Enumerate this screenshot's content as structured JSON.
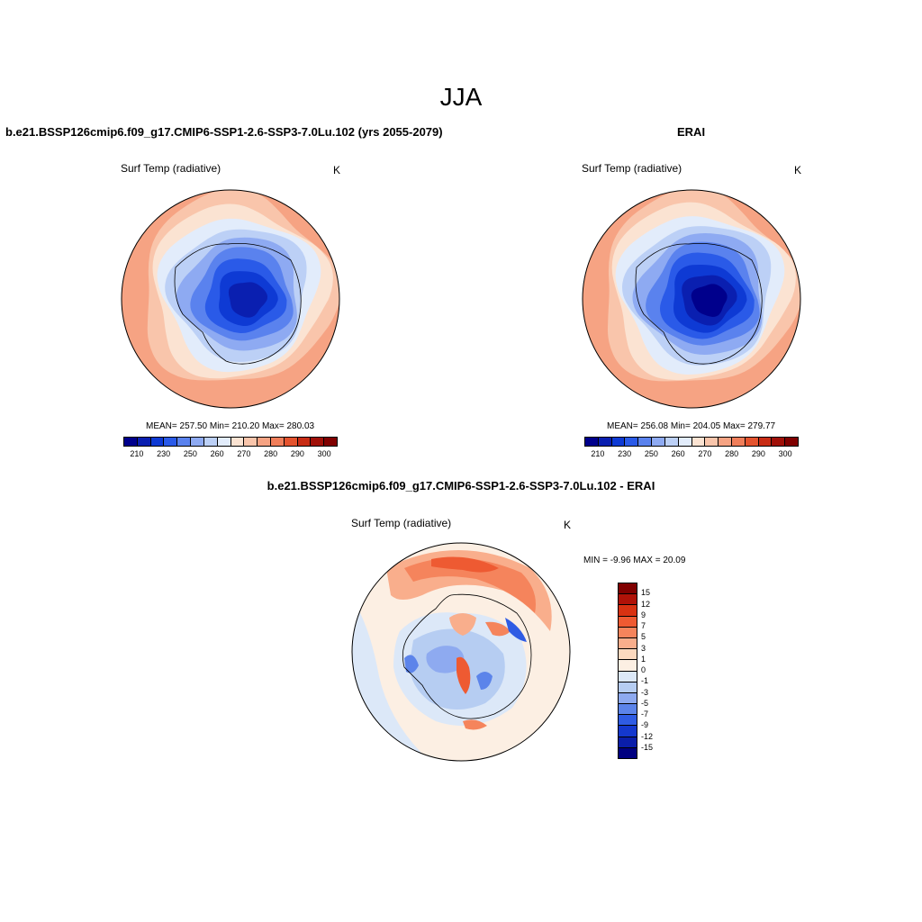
{
  "figure": {
    "title": "JJA"
  },
  "panels": {
    "model": {
      "header": "b.e21.BSSP126cmip6.f09_g17.CMIP6-SSP1-2.6-SSP3-7.0Lu.102 (yrs 2055-2079)",
      "variable": "Surf Temp (radiative)",
      "units": "K",
      "stats": "MEAN= 257.50  Min= 210.20  Max= 280.03"
    },
    "obs": {
      "header": "ERAI",
      "variable": "Surf Temp (radiative)",
      "units": "K",
      "stats": "MEAN= 256.08  Min= 204.05  Max= 279.77"
    },
    "diff": {
      "header": "b.e21.BSSP126cmip6.f09_g17.CMIP6-SSP1-2.6-SSP3-7.0Lu.102 - ERAI",
      "variable": "Surf Temp (radiative)",
      "units": "K",
      "stats": "MIN =  -9.96 MAX =  20.09"
    }
  },
  "colorbars": {
    "absolute": {
      "colors": [
        "#00008c",
        "#0a1fb0",
        "#0e3ad4",
        "#2a5ae8",
        "#5a82ee",
        "#8eaaf2",
        "#bcd0f6",
        "#e2ecfb",
        "#fbe3d2",
        "#f9c5ab",
        "#f6a383",
        "#f07e5a",
        "#e4532e",
        "#c82c14",
        "#a01008",
        "#800000"
      ],
      "tick_labels": [
        "210",
        "230",
        "250",
        "260",
        "270",
        "280",
        "290",
        "300"
      ]
    },
    "difference": {
      "colors": [
        "#800000",
        "#b01208",
        "#d83212",
        "#ee5a32",
        "#f5845c",
        "#f9ae8c",
        "#fcd9bf",
        "#fcefe3",
        "#dce8f8",
        "#b6cdf2",
        "#8eaaf0",
        "#5c84ea",
        "#2f5ce4",
        "#1438ce",
        "#0a1eaa",
        "#000080"
      ],
      "tick_labels": [
        "15",
        "12",
        "9",
        "7",
        "5",
        "3",
        "1",
        "0",
        "-1",
        "-3",
        "-5",
        "-7",
        "-9",
        "-12",
        "-15"
      ]
    }
  },
  "map_layers": {
    "model": [
      {
        "color": "#f6a383",
        "label": "outer ring warm"
      },
      {
        "color": "#f9c5ab",
        "label": "ring"
      },
      {
        "color": "#fbe3d2",
        "label": "ring"
      },
      {
        "color": "#e2ecfb",
        "label": "ring"
      },
      {
        "color": "#bcd0f6",
        "label": "ring"
      },
      {
        "color": "#8eaaf2",
        "label": "ring"
      },
      {
        "color": "#5a82ee",
        "label": "continent edge"
      },
      {
        "color": "#2a5ae8",
        "label": "plateau"
      },
      {
        "color": "#0e3ad4",
        "label": "plateau"
      },
      {
        "color": "#0a1fb0",
        "label": "interior"
      }
    ],
    "obs": [
      {
        "color": "#f6a383",
        "label": "outer ring warm"
      },
      {
        "color": "#f9c5ab",
        "label": "ring"
      },
      {
        "color": "#fbe3d2",
        "label": "ring"
      },
      {
        "color": "#e2ecfb",
        "label": "ring"
      },
      {
        "color": "#bcd0f6",
        "label": "ring"
      },
      {
        "color": "#8eaaf2",
        "label": "ring"
      },
      {
        "color": "#5a82ee",
        "label": "continent edge"
      },
      {
        "color": "#2a5ae8",
        "label": "plateau"
      },
      {
        "color": "#0e3ad4",
        "label": "plateau"
      },
      {
        "color": "#0a1fb0",
        "label": "interior"
      },
      {
        "color": "#00008c",
        "label": "coldest core"
      }
    ]
  }
}
